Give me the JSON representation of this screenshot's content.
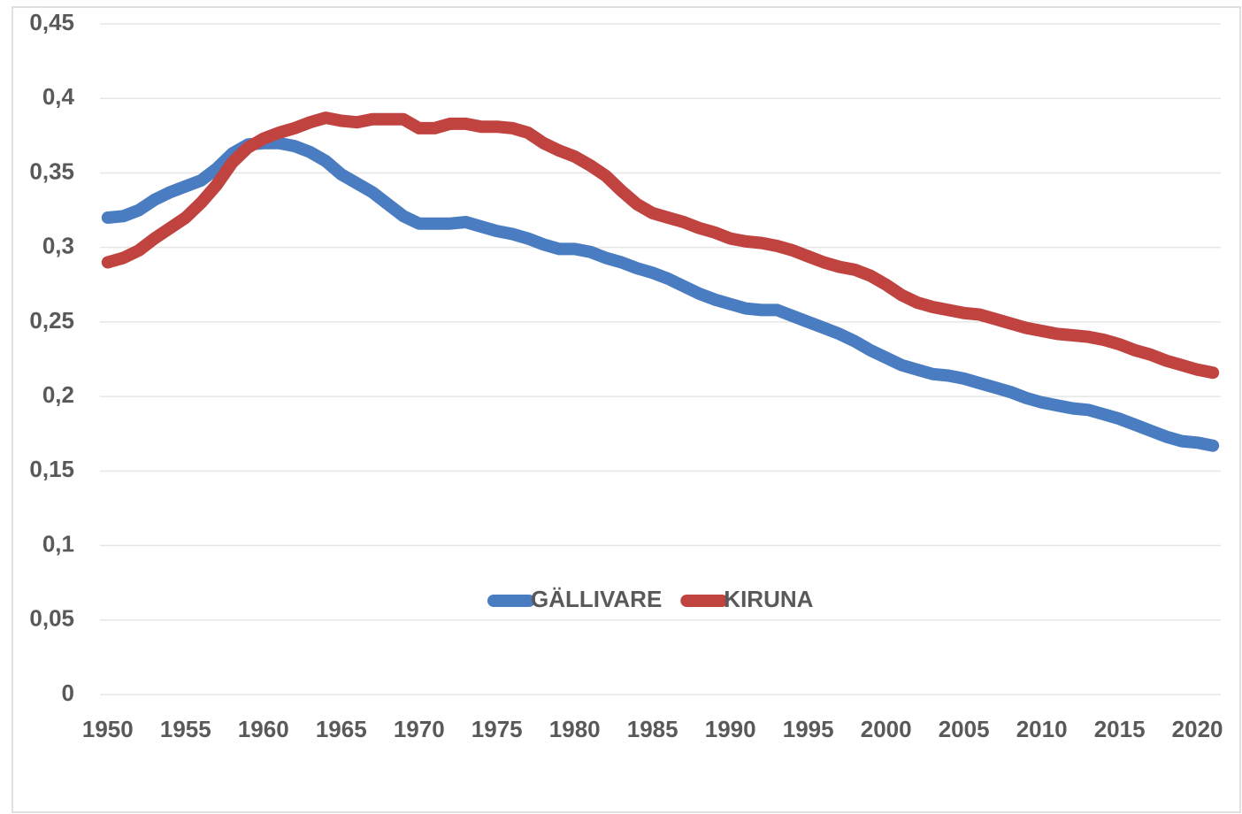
{
  "chart_data": {
    "type": "line",
    "x": [
      1950,
      1951,
      1952,
      1953,
      1954,
      1955,
      1956,
      1957,
      1958,
      1959,
      1960,
      1961,
      1962,
      1963,
      1964,
      1965,
      1966,
      1967,
      1968,
      1969,
      1970,
      1971,
      1972,
      1973,
      1974,
      1975,
      1976,
      1977,
      1978,
      1979,
      1980,
      1981,
      1982,
      1983,
      1984,
      1985,
      1986,
      1987,
      1988,
      1989,
      1990,
      1991,
      1992,
      1993,
      1994,
      1995,
      1996,
      1997,
      1998,
      1999,
      2000,
      2001,
      2002,
      2003,
      2004,
      2005,
      2006,
      2007,
      2008,
      2009,
      2010,
      2011,
      2012,
      2013,
      2014,
      2015,
      2016,
      2017,
      2018,
      2019,
      2020,
      2021
    ],
    "series": [
      {
        "name": "GÄLLIVARE",
        "color": "#4a7cc1",
        "values": [
          0.32,
          0.321,
          0.325,
          0.332,
          0.337,
          0.341,
          0.345,
          0.353,
          0.363,
          0.369,
          0.37,
          0.37,
          0.368,
          0.364,
          0.358,
          0.349,
          0.343,
          0.337,
          0.329,
          0.321,
          0.316,
          0.316,
          0.316,
          0.317,
          0.314,
          0.311,
          0.309,
          0.306,
          0.302,
          0.299,
          0.299,
          0.297,
          0.293,
          0.29,
          0.286,
          0.283,
          0.279,
          0.274,
          0.269,
          0.265,
          0.262,
          0.259,
          0.258,
          0.258,
          0.254,
          0.25,
          0.246,
          0.242,
          0.237,
          0.231,
          0.226,
          0.221,
          0.218,
          0.215,
          0.214,
          0.212,
          0.209,
          0.206,
          0.203,
          0.199,
          0.196,
          0.194,
          0.192,
          0.191,
          0.188,
          0.185,
          0.181,
          0.177,
          0.173,
          0.17,
          0.169,
          0.167
        ]
      },
      {
        "name": "KIRUNA",
        "color": "#c0433f",
        "values": [
          0.29,
          0.293,
          0.298,
          0.306,
          0.313,
          0.32,
          0.33,
          0.342,
          0.357,
          0.367,
          0.373,
          0.377,
          0.38,
          0.384,
          0.387,
          0.385,
          0.384,
          0.386,
          0.386,
          0.386,
          0.38,
          0.38,
          0.383,
          0.383,
          0.381,
          0.381,
          0.38,
          0.377,
          0.37,
          0.365,
          0.361,
          0.355,
          0.348,
          0.338,
          0.329,
          0.323,
          0.32,
          0.317,
          0.313,
          0.31,
          0.306,
          0.304,
          0.303,
          0.301,
          0.298,
          0.294,
          0.29,
          0.287,
          0.285,
          0.281,
          0.275,
          0.268,
          0.263,
          0.26,
          0.258,
          0.256,
          0.255,
          0.252,
          0.249,
          0.246,
          0.244,
          0.242,
          0.241,
          0.24,
          0.238,
          0.235,
          0.231,
          0.228,
          0.224,
          0.221,
          0.218,
          0.216
        ]
      }
    ],
    "xlim": [
      1949.5,
      2021.5
    ],
    "xticks": [
      1950,
      1955,
      1960,
      1965,
      1970,
      1975,
      1980,
      1985,
      1990,
      1995,
      2000,
      2005,
      2010,
      2015,
      2020
    ],
    "ylim": [
      0,
      0.45
    ],
    "yticks": [
      0,
      {
        "value": 0.05,
        "label": "0,05"
      },
      {
        "value": 0.1,
        "label": "0,1"
      },
      {
        "value": 0.15,
        "label": "0,15"
      },
      {
        "value": 0.2,
        "label": "0,2"
      },
      {
        "value": 0.25,
        "label": "0,25"
      },
      {
        "value": 0.3,
        "label": "0,3"
      },
      {
        "value": 0.35,
        "label": "0,35"
      },
      {
        "value": 0.4,
        "label": "0,4"
      },
      {
        "value": 0.45,
        "label": "0,45"
      }
    ],
    "grid": true,
    "legend": "bottom"
  }
}
